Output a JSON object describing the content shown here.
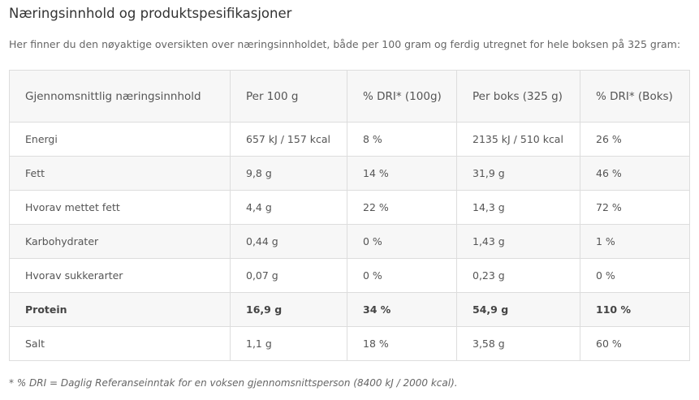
{
  "header": {
    "title": "Næringsinnhold og produktspesifikasjoner",
    "intro": "Her finner du den nøyaktige oversikten over næringsinnholdet, både per 100 gram og ferdig utregnet for hele boksen på 325 gram:"
  },
  "table": {
    "columns": [
      "Gjennomsnittlig næringsinnhold",
      "Per 100 g",
      "% DRI* (100g)",
      "Per boks (325 g)",
      "% DRI* (Boks)"
    ],
    "rows": [
      [
        "Energi",
        "657 kJ / 157 kcal",
        "8 %",
        "2135 kJ / 510 kcal",
        "26 %"
      ],
      [
        "Fett",
        "9,8 g",
        "14 %",
        "31,9 g",
        "46 %"
      ],
      [
        "Hvorav mettet fett",
        "4,4 g",
        "22 %",
        "14,3 g",
        "72 %"
      ],
      [
        "Karbohydrater",
        "0,44 g",
        "0 %",
        "1,43 g",
        "1 %"
      ],
      [
        "Hvorav sukkerarter",
        "0,07 g",
        "0 %",
        "0,23 g",
        "0 %"
      ],
      [
        "Protein",
        "16,9 g",
        "34 %",
        "54,9 g",
        "110 %"
      ],
      [
        "Salt",
        "1,1 g",
        "18 %",
        "3,58 g",
        "60 %"
      ]
    ]
  },
  "footnote": "* % DRI = Daglig Referanseinntak for en voksen gjennomsnittsperson (8400 kJ / 2000 kcal)."
}
